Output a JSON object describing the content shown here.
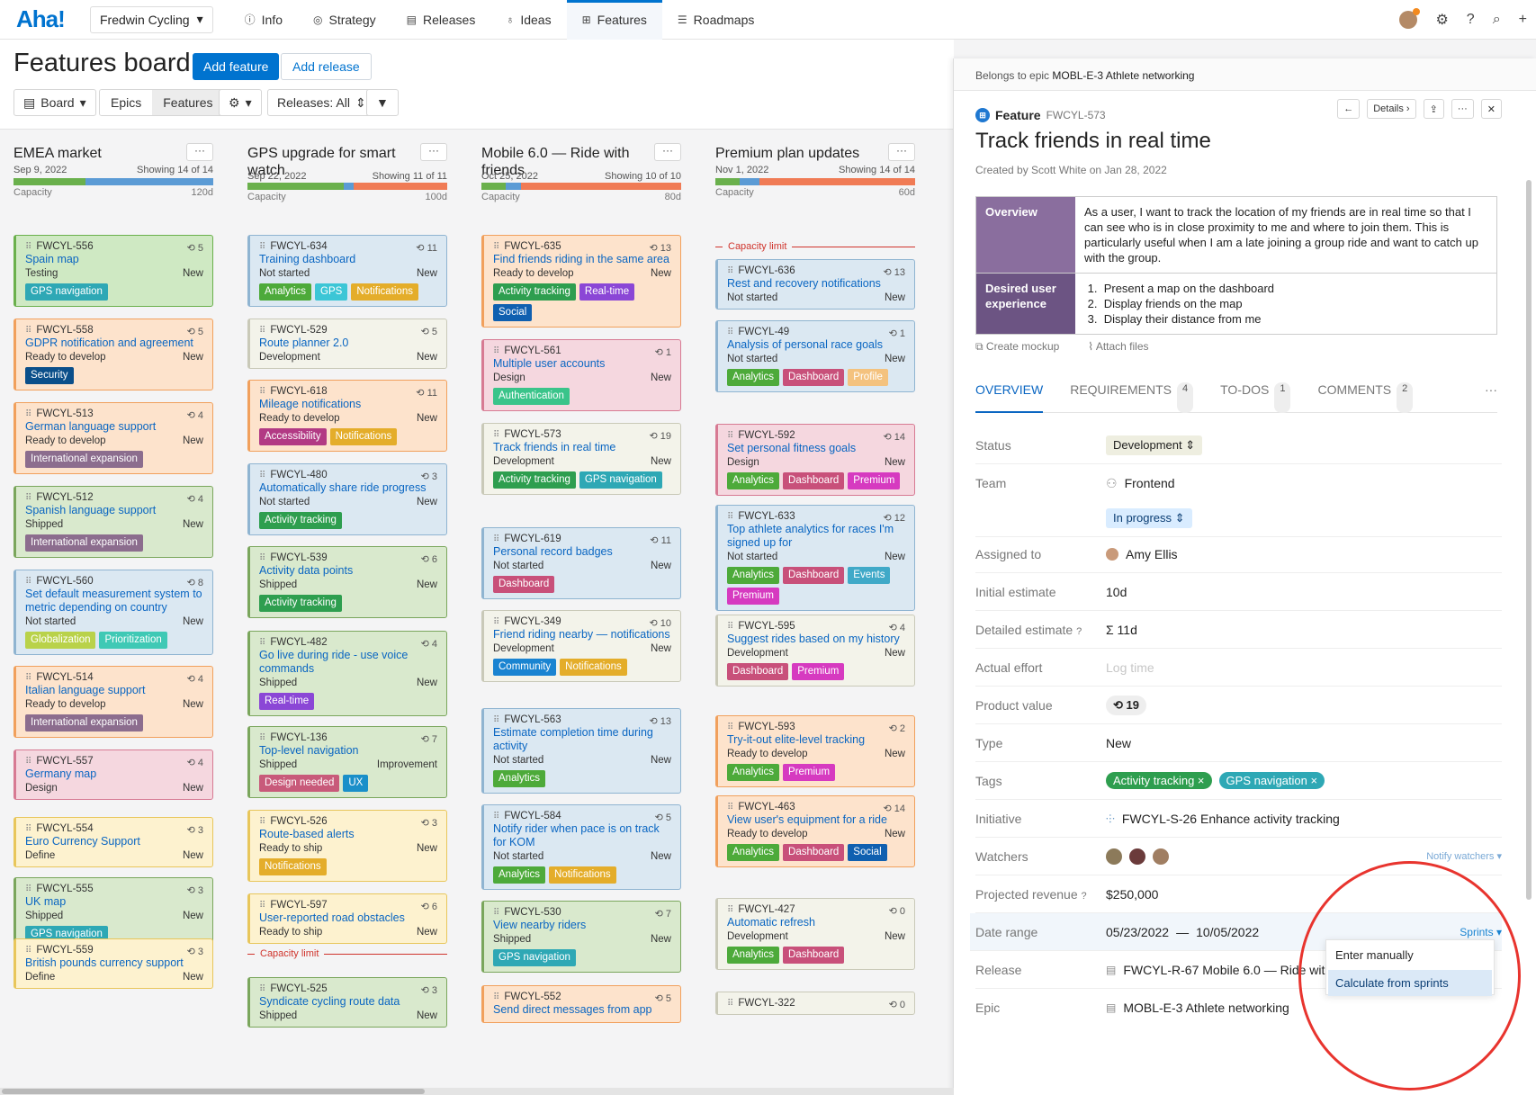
{
  "nav": {
    "logo": "Aha!",
    "workspace": "Fredwin Cycling",
    "items": [
      "Info",
      "Strategy",
      "Releases",
      "Ideas",
      "Features",
      "Roadmaps"
    ]
  },
  "header": {
    "title": "Features board",
    "add_feature": "Add feature",
    "add_release": "Add release",
    "board": "Board",
    "epics": "Epics",
    "features": "Features",
    "releases": "Releases: All"
  },
  "columns": [
    {
      "title": "EMEA market",
      "date": "Sep 9, 2022",
      "showing": "Showing 14 of 14",
      "capacity": "Capacity",
      "cap_value": "120d",
      "cap_fill": [
        {
          "c": "#6ab04c",
          "w": 0.36
        },
        {
          "c": "#5b9bd5",
          "w": 0.64
        }
      ],
      "cards": [
        {
          "id": "FWCYL-556",
          "score": "5",
          "title": "Spain map",
          "status": "Testing",
          "type": "New",
          "bg": "#cfe9c3",
          "bd": "#6ab04c",
          "tags": [
            [
              "GPS navigation",
              "#2ea8b5"
            ]
          ]
        },
        {
          "id": "FWCYL-558",
          "score": "5",
          "title": "GDPR notification and agreement",
          "status": "Ready to develop",
          "type": "New",
          "bg": "#fde3cc",
          "bd": "#f1a05c",
          "tags": [
            [
              "Security",
              "#0b4f8a"
            ]
          ]
        },
        {
          "id": "FWCYL-513",
          "score": "4",
          "title": "German language support",
          "status": "Ready to develop",
          "type": "New",
          "bg": "#fde3cc",
          "bd": "#f1a05c",
          "tags": [
            [
              "International expansion",
              "#8c6d8e"
            ]
          ]
        },
        {
          "id": "FWCYL-512",
          "score": "4",
          "title": "Spanish language support",
          "status": "Shipped",
          "type": "New",
          "bg": "#d9e9cd",
          "bd": "#7aa65c",
          "tags": [
            [
              "International expansion",
              "#8c6d8e"
            ]
          ]
        },
        {
          "id": "FWCYL-560",
          "score": "8",
          "title": "Set default measurement system to metric depending on country",
          "status": "Not started",
          "type": "New",
          "bg": "#dbe8f2",
          "bd": "#8fb4d1",
          "tags": [
            [
              "Globalization",
              "#b9d24a"
            ],
            [
              "Prioritization",
              "#3fc9b5"
            ]
          ]
        },
        {
          "id": "FWCYL-514",
          "score": "4",
          "title": "Italian language support",
          "status": "Ready to develop",
          "type": "New",
          "bg": "#fde3cc",
          "bd": "#f1a05c",
          "tags": [
            [
              "International expansion",
              "#8c6d8e"
            ]
          ]
        },
        {
          "id": "FWCYL-557",
          "score": "4",
          "title": "Germany map",
          "status": "Design",
          "type": "New",
          "bg": "#f5d7df",
          "bd": "#d77a93",
          "tags": []
        },
        {
          "id": "FWCYL-554",
          "score": "3",
          "title": "Euro Currency Support",
          "status": "Define",
          "type": "New",
          "bg": "#fdf2cf",
          "bd": "#e8c65b",
          "tags": []
        },
        {
          "id": "FWCYL-555",
          "score": "3",
          "title": "UK map",
          "status": "Shipped",
          "type": "New",
          "bg": "#d9e9cd",
          "bd": "#7aa65c",
          "tags": [
            [
              "GPS navigation",
              "#2ea8b5"
            ]
          ]
        },
        {
          "id": "FWCYL-559",
          "score": "3",
          "title": "British pounds currency support",
          "status": "Define",
          "type": "New",
          "bg": "#fdf2cf",
          "bd": "#e8c65b",
          "tags": []
        }
      ]
    },
    {
      "title": "GPS upgrade for smart watch",
      "date": "Sep 22, 2022",
      "showing": "Showing 11 of 11",
      "capacity": "Capacity",
      "cap_value": "100d",
      "cap_fill": [
        {
          "c": "#6ab04c",
          "w": 0.48
        },
        {
          "c": "#5b9bd5",
          "w": 0.05
        },
        {
          "c": "#f07b55",
          "w": 0.47
        }
      ],
      "cards": [
        {
          "id": "FWCYL-634",
          "score": "11",
          "title": "Training dashboard",
          "status": "Not started",
          "type": "New",
          "bg": "#dbe8f2",
          "bd": "#8fb4d1",
          "tags": [
            [
              "Analytics",
              "#4daa3a"
            ],
            [
              "GPS",
              "#3cc6d6"
            ],
            [
              "Notifications",
              "#e4ad2a"
            ]
          ]
        },
        {
          "id": "FWCYL-529",
          "score": "5",
          "title": "Route planner 2.0",
          "status": "Development",
          "type": "New",
          "bg": "#f3f3ea",
          "bd": "#c9c9b8",
          "tags": []
        },
        {
          "id": "FWCYL-618",
          "score": "11",
          "title": "Mileage notifications",
          "status": "Ready to develop",
          "type": "New",
          "bg": "#fde3cc",
          "bd": "#f1a05c",
          "tags": [
            [
              "Accessibility",
              "#b23a84"
            ],
            [
              "Notifications",
              "#e4ad2a"
            ]
          ]
        },
        {
          "id": "FWCYL-480",
          "score": "3",
          "title": "Automatically share ride progress",
          "status": "Not started",
          "type": "New",
          "bg": "#dbe8f2",
          "bd": "#8fb4d1",
          "tags": [
            [
              "Activity tracking",
              "#2e9e4f"
            ]
          ]
        },
        {
          "id": "FWCYL-539",
          "score": "6",
          "title": "Activity data points",
          "status": "Shipped",
          "type": "New",
          "bg": "#d9e9cd",
          "bd": "#7aa65c",
          "tags": [
            [
              "Activity tracking",
              "#2e9e4f"
            ]
          ]
        },
        {
          "id": "FWCYL-482",
          "score": "4",
          "title": "Go live during ride - use voice commands",
          "status": "Shipped",
          "type": "New",
          "bg": "#d9e9cd",
          "bd": "#7aa65c",
          "tags": [
            [
              "Real-time",
              "#8b47d6"
            ]
          ]
        },
        {
          "id": "FWCYL-136",
          "score": "7",
          "title": "Top-level navigation",
          "status": "Shipped",
          "type": "Improvement",
          "bg": "#d9e9cd",
          "bd": "#7aa65c",
          "tags": [
            [
              "Design needed",
              "#c85a7a"
            ],
            [
              "UX",
              "#1a8fc9"
            ]
          ]
        },
        {
          "id": "FWCYL-526",
          "score": "3",
          "title": "Route-based alerts",
          "status": "Ready to ship",
          "type": "New",
          "bg": "#fdf2cf",
          "bd": "#e8c65b",
          "tags": [
            [
              "Notifications",
              "#e4ad2a"
            ]
          ]
        },
        {
          "id": "FWCYL-597",
          "score": "6",
          "title": "User-reported road obstacles",
          "status": "Ready to ship",
          "type": "New",
          "bg": "#fdf2cf",
          "bd": "#e8c65b",
          "tags": []
        },
        {
          "id": "FWCYL-525",
          "score": "3",
          "title": "Syndicate cycling route data",
          "status": "Shipped",
          "type": "New",
          "bg": "#d9e9cd",
          "bd": "#7aa65c",
          "tags": []
        }
      ],
      "limit_label": "Capacity limit"
    },
    {
      "title": "Mobile 6.0 — Ride with friends",
      "date": "Oct 25, 2022",
      "showing": "Showing 10 of 10",
      "capacity": "Capacity",
      "cap_value": "80d",
      "cap_fill": [
        {
          "c": "#6ab04c",
          "w": 0.12
        },
        {
          "c": "#5b9bd5",
          "w": 0.08
        },
        {
          "c": "#f07b55",
          "w": 0.8
        }
      ],
      "cards": [
        {
          "id": "FWCYL-635",
          "score": "13",
          "title": "Find friends riding in the same area",
          "status": "Ready to develop",
          "type": "New",
          "bg": "#fde3cc",
          "bd": "#f1a05c",
          "tags": [
            [
              "Activity tracking",
              "#2e9e4f"
            ],
            [
              "Real-time",
              "#8b47d6"
            ],
            [
              "Social",
              "#1060b0"
            ]
          ]
        },
        {
          "id": "FWCYL-561",
          "score": "1",
          "title": "Multiple user accounts",
          "status": "Design",
          "type": "New",
          "bg": "#f5d7df",
          "bd": "#d77a93",
          "tags": [
            [
              "Authentication",
              "#3ac48a"
            ]
          ]
        },
        {
          "id": "FWCYL-573",
          "score": "19",
          "title": "Track friends in real time",
          "status": "Development",
          "type": "New",
          "bg": "#f3f3ea",
          "bd": "#c9c9b8",
          "tags": [
            [
              "Activity tracking",
              "#2e9e4f"
            ],
            [
              "GPS navigation",
              "#2ea8b5"
            ]
          ]
        },
        {
          "id": "FWCYL-619",
          "score": "11",
          "title": "Personal record badges",
          "status": "Not started",
          "type": "New",
          "bg": "#dbe8f2",
          "bd": "#8fb4d1",
          "tags": [
            [
              "Dashboard",
              "#c8507a"
            ]
          ]
        },
        {
          "id": "FWCYL-349",
          "score": "10",
          "title": "Friend riding nearby — notifications",
          "status": "Development",
          "type": "New",
          "bg": "#f3f3ea",
          "bd": "#c9c9b8",
          "tags": [
            [
              "Community",
              "#1a84d1"
            ],
            [
              "Notifications",
              "#e4ad2a"
            ]
          ]
        },
        {
          "id": "FWCYL-563",
          "score": "13",
          "title": "Estimate completion time during activity",
          "status": "Not started",
          "type": "New",
          "bg": "#dbe8f2",
          "bd": "#8fb4d1",
          "tags": [
            [
              "Analytics",
              "#4daa3a"
            ]
          ]
        },
        {
          "id": "FWCYL-584",
          "score": "5",
          "title": "Notify rider when pace is on track for KOM",
          "status": "Not started",
          "type": "New",
          "bg": "#dbe8f2",
          "bd": "#8fb4d1",
          "tags": [
            [
              "Analytics",
              "#4daa3a"
            ],
            [
              "Notifications",
              "#e4ad2a"
            ]
          ]
        },
        {
          "id": "FWCYL-530",
          "score": "7",
          "title": "View nearby riders",
          "status": "Shipped",
          "type": "New",
          "bg": "#d9e9cd",
          "bd": "#7aa65c",
          "tags": [
            [
              "GPS navigation",
              "#2ea8b5"
            ]
          ]
        },
        {
          "id": "FWCYL-552",
          "score": "5",
          "title": "Send direct messages from app",
          "status": "",
          "type": "",
          "bg": "#fde3cc",
          "bd": "#f1a05c",
          "tags": []
        }
      ],
      "limit_label": "Capacity limit"
    },
    {
      "title": "Premium plan updates",
      "date": "Nov 1, 2022",
      "showing": "Showing 14 of 14",
      "capacity": "Capacity",
      "cap_value": "60d",
      "cap_fill": [
        {
          "c": "#6ab04c",
          "w": 0.12
        },
        {
          "c": "#5b9bd5",
          "w": 0.1
        },
        {
          "c": "#f07b55",
          "w": 0.78
        }
      ],
      "cards": [
        {
          "id": "FWCYL-636",
          "score": "13",
          "title": "Rest and recovery notifications",
          "status": "Not started",
          "type": "New",
          "bg": "#dbe8f2",
          "bd": "#8fb4d1",
          "tags": []
        },
        {
          "id": "FWCYL-49",
          "score": "1",
          "title": "Analysis of personal race goals",
          "status": "Not started",
          "type": "New",
          "bg": "#dbe8f2",
          "bd": "#8fb4d1",
          "tags": [
            [
              "Analytics",
              "#4daa3a"
            ],
            [
              "Dashboard",
              "#c8507a"
            ],
            [
              "Profile",
              "#f4c27e"
            ]
          ]
        },
        {
          "id": "FWCYL-592",
          "score": "14",
          "title": "Set personal fitness goals",
          "status": "Design",
          "type": "New",
          "bg": "#f5d7df",
          "bd": "#d77a93",
          "tags": [
            [
              "Analytics",
              "#4daa3a"
            ],
            [
              "Dashboard",
              "#c8507a"
            ],
            [
              "Premium",
              "#d63ac0"
            ]
          ]
        },
        {
          "id": "FWCYL-633",
          "score": "12",
          "title": "Top athlete analytics for races I'm signed up for",
          "status": "Not started",
          "type": "New",
          "bg": "#dbe8f2",
          "bd": "#8fb4d1",
          "tags": [
            [
              "Analytics",
              "#4daa3a"
            ],
            [
              "Dashboard",
              "#c8507a"
            ],
            [
              "Events",
              "#40a9c8"
            ],
            [
              "Premium",
              "#d63ac0"
            ]
          ]
        },
        {
          "id": "FWCYL-595",
          "score": "4",
          "title": "Suggest rides based on my history",
          "status": "Development",
          "type": "New",
          "bg": "#f3f3ea",
          "bd": "#c9c9b8",
          "tags": [
            [
              "Dashboard",
              "#c8507a"
            ],
            [
              "Premium",
              "#d63ac0"
            ]
          ]
        },
        {
          "id": "FWCYL-593",
          "score": "2",
          "title": "Try-it-out elite-level tracking",
          "status": "Ready to develop",
          "type": "New",
          "bg": "#fde3cc",
          "bd": "#f1a05c",
          "tags": [
            [
              "Analytics",
              "#4daa3a"
            ],
            [
              "Premium",
              "#d63ac0"
            ]
          ]
        },
        {
          "id": "FWCYL-463",
          "score": "14",
          "title": "View user's equipment for a ride",
          "status": "Ready to develop",
          "type": "New",
          "bg": "#fde3cc",
          "bd": "#f1a05c",
          "tags": [
            [
              "Analytics",
              "#4daa3a"
            ],
            [
              "Dashboard",
              "#c8507a"
            ],
            [
              "Social",
              "#1060b0"
            ]
          ]
        },
        {
          "id": "FWCYL-427",
          "score": "0",
          "title": "Automatic refresh",
          "status": "Development",
          "type": "New",
          "bg": "#f3f3ea",
          "bd": "#c9c9b8",
          "tags": [
            [
              "Analytics",
              "#4daa3a"
            ],
            [
              "Dashboard",
              "#c8507a"
            ]
          ]
        },
        {
          "id": "FWCYL-322",
          "score": "0",
          "title": "",
          "status": "",
          "type": "",
          "bg": "#f3f3ea",
          "bd": "#c9c9b8",
          "tags": []
        }
      ],
      "limit_label": "Capacity limit"
    }
  ],
  "panel": {
    "epic_prefix": "Belongs to epic",
    "epic": "MOBL-E-3 Athlete networking",
    "type": "Feature",
    "id": "FWCYL-573",
    "details": "Details",
    "title": "Track friends in real time",
    "created": "Created by Scott White on Jan 28, 2022",
    "overview_label": "Overview",
    "overview": "As a user, I want to track the location of my friends are in real time so that I can see who is in close proximity to me and where to join them. This is particularly useful when I am a late joining a group ride and want to catch up with the group.",
    "dux_label": "Desired user experience",
    "dux": [
      "Present a map on the dashboard",
      "Display friends on the map",
      "Display their distance from me"
    ],
    "create_mockup": "Create mockup",
    "attach_files": "Attach files",
    "tabs": [
      {
        "label": "OVERVIEW",
        "count": ""
      },
      {
        "label": "REQUIREMENTS",
        "count": "4"
      },
      {
        "label": "TO-DOS",
        "count": "1"
      },
      {
        "label": "COMMENTS",
        "count": "2"
      }
    ],
    "fields": {
      "status_l": "Status",
      "status": "Development",
      "team_l": "Team",
      "team": "Frontend",
      "progress": "In progress",
      "assigned_l": "Assigned to",
      "assigned": "Amy Ellis",
      "initial_l": "Initial estimate",
      "initial": "10d",
      "detailed_l": "Detailed estimate",
      "detailed": "Σ 11d",
      "effort_l": "Actual effort",
      "effort": "Log time",
      "value_l": "Product value",
      "value": "19",
      "type_l": "Type",
      "type": "New",
      "tags_l": "Tags",
      "tag1": "Activity tracking",
      "tag2": "GPS navigation",
      "initiative_l": "Initiative",
      "initiative": "FWCYL-S-26 Enhance activity tracking",
      "watchers_l": "Watchers",
      "notify": "Notify watchers",
      "revenue_l": "Projected revenue",
      "revenue": "$250,000",
      "date_l": "Date range",
      "date_start": "05/23/2022",
      "date_sep": "—",
      "date_end": "10/05/2022",
      "sprints": "Sprints",
      "release_l": "Release",
      "release": "FWCYL-R-67 Mobile 6.0 — Ride with friends"
    },
    "menu": {
      "manual": "Enter manually",
      "sprints": "Calculate from sprints"
    }
  }
}
